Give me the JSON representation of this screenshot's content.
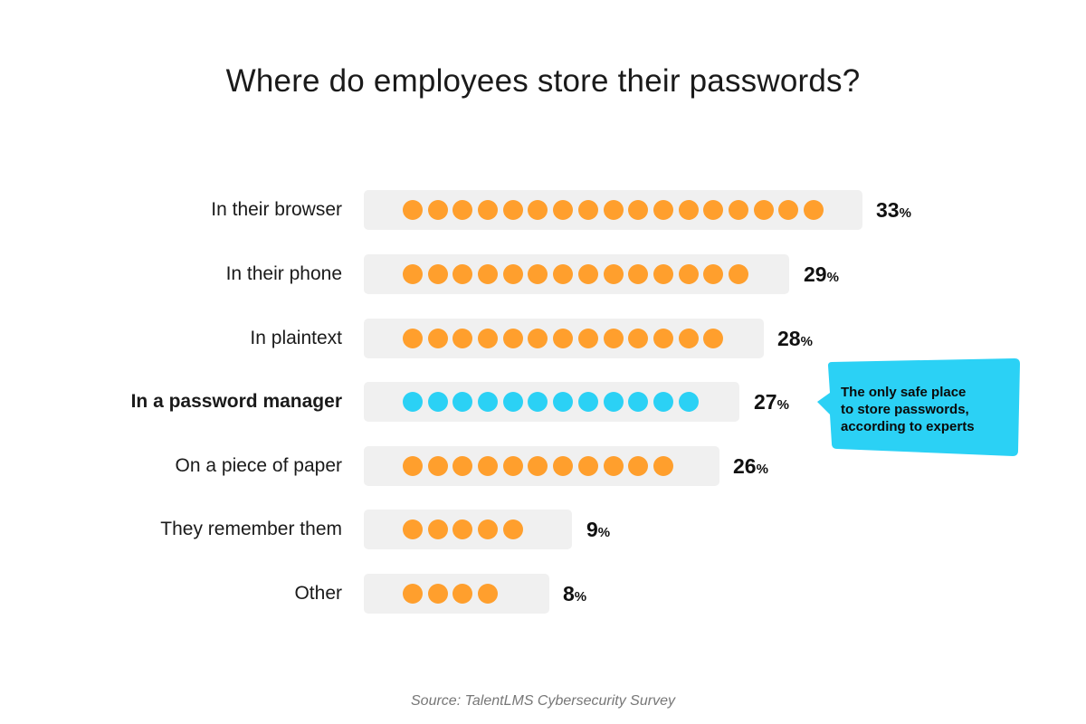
{
  "chart_data": {
    "type": "bar",
    "title": "Where do employees store their passwords?",
    "xlabel": "",
    "ylabel": "",
    "categories": [
      "In their browser",
      "In their phone",
      "In plaintext",
      "In a password manager",
      "On a piece of paper",
      "They remember them",
      "Other"
    ],
    "values": [
      33,
      29,
      28,
      27,
      26,
      9,
      8
    ],
    "unit": "%",
    "dot_counts": [
      17,
      14,
      13,
      12,
      11,
      5,
      4
    ],
    "highlight": "In a password manager",
    "annotation": "The only safe place to store passwords, according to experts",
    "source": "Source: TalentLMS Cybersecurity Survey",
    "grid": false,
    "legend": null
  },
  "title": "Where do employees store their passwords?",
  "colors": {
    "default_dot": "#ff9f2d",
    "highlight_dot": "#2bd1f5",
    "track": "#f0f0f0",
    "callout": "#2bd1f5"
  },
  "rows": [
    {
      "label": "In their browser",
      "value": "33",
      "pct": "%"
    },
    {
      "label": "In their phone",
      "value": "29",
      "pct": "%"
    },
    {
      "label": "In plaintext",
      "value": "28",
      "pct": "%"
    },
    {
      "label": "In a password manager",
      "value": "27",
      "pct": "%"
    },
    {
      "label": "On a piece of paper",
      "value": "26",
      "pct": "%"
    },
    {
      "label": "They remember them",
      "value": "9",
      "pct": "%"
    },
    {
      "label": "Other",
      "value": "8",
      "pct": "%"
    }
  ],
  "callout": {
    "line1": "The only safe place",
    "line2": "to store passwords,",
    "line3": "according to experts"
  },
  "source": "Source: TalentLMS Cybersecurity Survey"
}
